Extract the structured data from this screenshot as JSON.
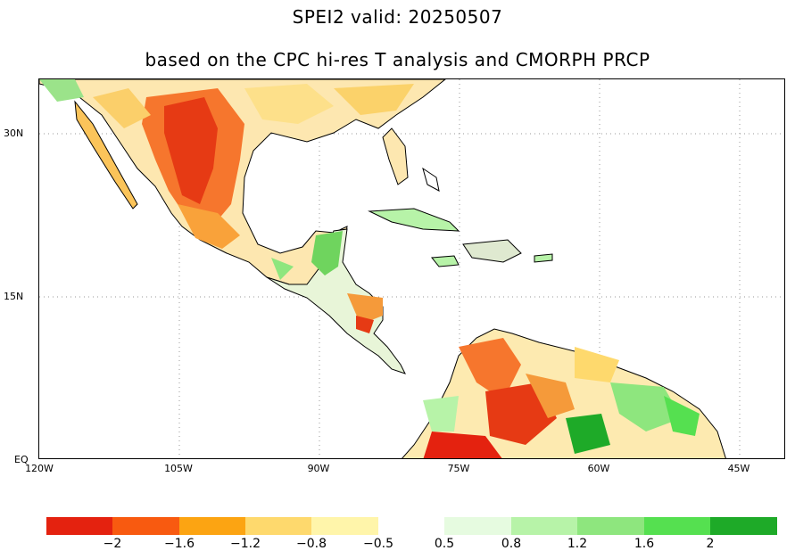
{
  "title": {
    "line1": "SPEI2  valid: 20250507",
    "line2": "based on the CPC hi-res T analysis and CMORPH PRCP"
  },
  "map": {
    "region": "Central America, Caribbean and northern South America",
    "lat_labels": [
      "30N",
      "15N",
      "EQ"
    ],
    "lon_labels": [
      "120W",
      "105W",
      "90W",
      "75W",
      "60W",
      "45W"
    ],
    "grid": "dotted"
  },
  "colorbar": {
    "labels": [
      "−2",
      "−1.6",
      "−1.2",
      "−0.8",
      "−0.5",
      "0.5",
      "0.8",
      "1.2",
      "1.6",
      "2"
    ],
    "colors": [
      "#e4220f",
      "#f85a10",
      "#fca412",
      "#fed96d",
      "#fff5aa",
      "#e6fbe0",
      "#b7f3a8",
      "#8ee67e",
      "#55e050",
      "#1eaa28"
    ]
  }
}
